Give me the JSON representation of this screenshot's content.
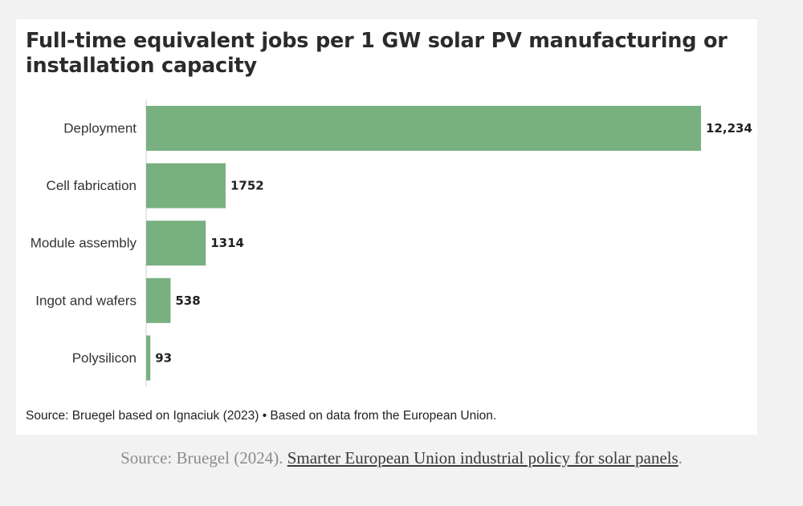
{
  "colors": {
    "bar": "#79b07f",
    "axis": "#d0d0d0"
  },
  "chart_data": {
    "type": "bar",
    "orientation": "horizontal",
    "title": "Full-time equivalent jobs per 1 GW solar PV manufacturing or installation capacity",
    "categories": [
      "Deployment",
      "Cell fabrication",
      "Module assembly",
      "Ingot and wafers",
      "Polysilicon"
    ],
    "values": [
      12234,
      1752,
      1314,
      538,
      93
    ],
    "value_labels": [
      "12,234",
      "1752",
      "1314",
      "538",
      "93"
    ],
    "xlim": [
      0,
      12234
    ],
    "xlabel": "",
    "ylabel": "",
    "source": "Source: Bruegel based on Ignaciuk (2023) • Based on data from the European Union."
  },
  "caption": {
    "prefix": "Source: Bruegel (2024). ",
    "link_text": "Smarter European Union industrial policy for solar panels",
    "suffix": "."
  }
}
